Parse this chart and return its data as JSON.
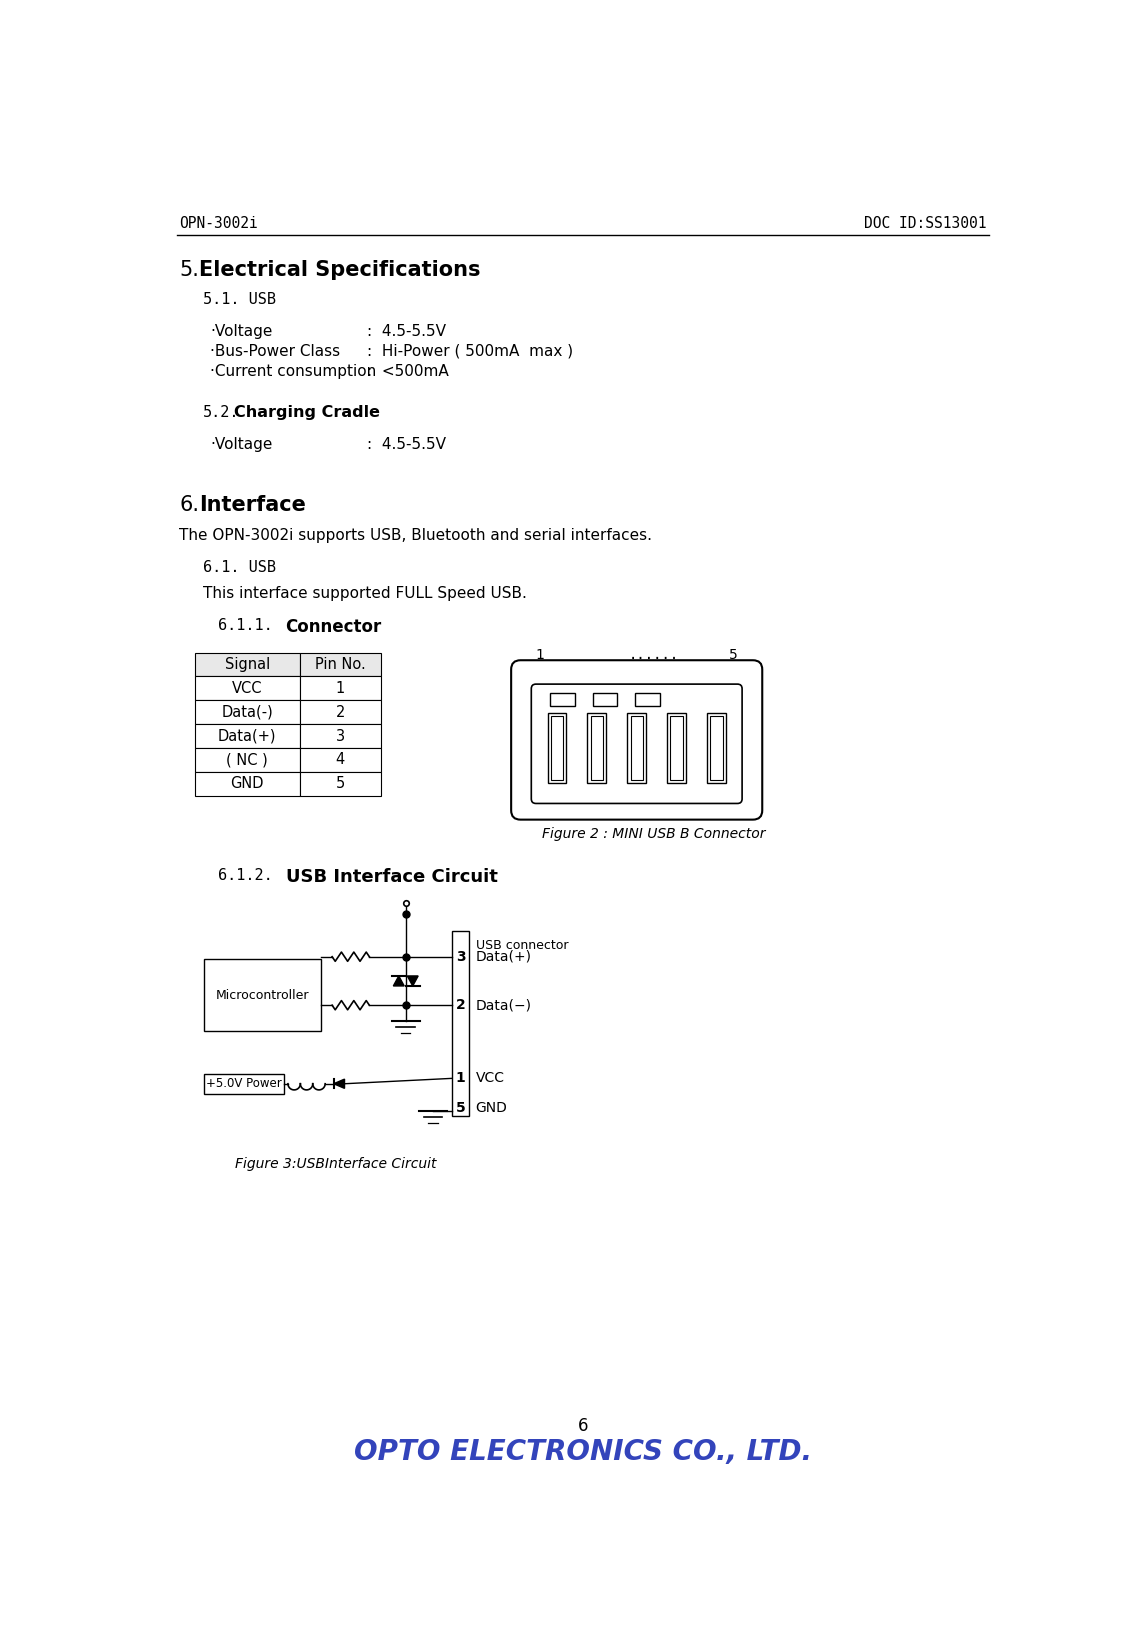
{
  "header_left": "OPN-3002i",
  "header_right": "DOC ID:SS13001",
  "footer_page": "6",
  "footer_logo": "OPTO ELECTRONICS CO., LTD.",
  "sec5_title": "5.  Electrical Specifications",
  "sec51_title": "5.1. USB",
  "sec51_items": [
    [
      "·Voltage",
      ":  4.5-5.5V"
    ],
    [
      "·Bus-Power Class",
      ":  Hi-Power ( 500mA  max )"
    ],
    [
      "·Current consumption",
      ":  <500mA"
    ]
  ],
  "sec52_title": "5.2. Charging Cradle",
  "sec52_items": [
    [
      "·Voltage",
      ":  4.5-5.5V"
    ]
  ],
  "sec6_title": "6.  Interface",
  "sec6_body": "The OPN-3002i supports USB, Bluetooth and serial interfaces.",
  "sec61_title": "6.1. USB",
  "sec61_body": "This interface supported FULL Speed USB.",
  "sec611_title": "6.1.1.",
  "sec611_sub": "Connector",
  "table_headers": [
    "Signal",
    "Pin No."
  ],
  "table_rows": [
    [
      "VCC",
      "1"
    ],
    [
      "Data(-)",
      "2"
    ],
    [
      "Data(+)",
      "3"
    ],
    [
      "( NC )",
      "4"
    ],
    [
      "GND",
      "5"
    ]
  ],
  "figure2_caption": "Figure 2 : MINI USB B Connector",
  "sec612_num": "6.1.2.",
  "sec612_title": "USB Interface Circuit",
  "figure3_caption": "Figure 3:USBInterface Circuit",
  "bg_color": "#ffffff",
  "text_color": "#000000",
  "logo_color": "#3344bb"
}
